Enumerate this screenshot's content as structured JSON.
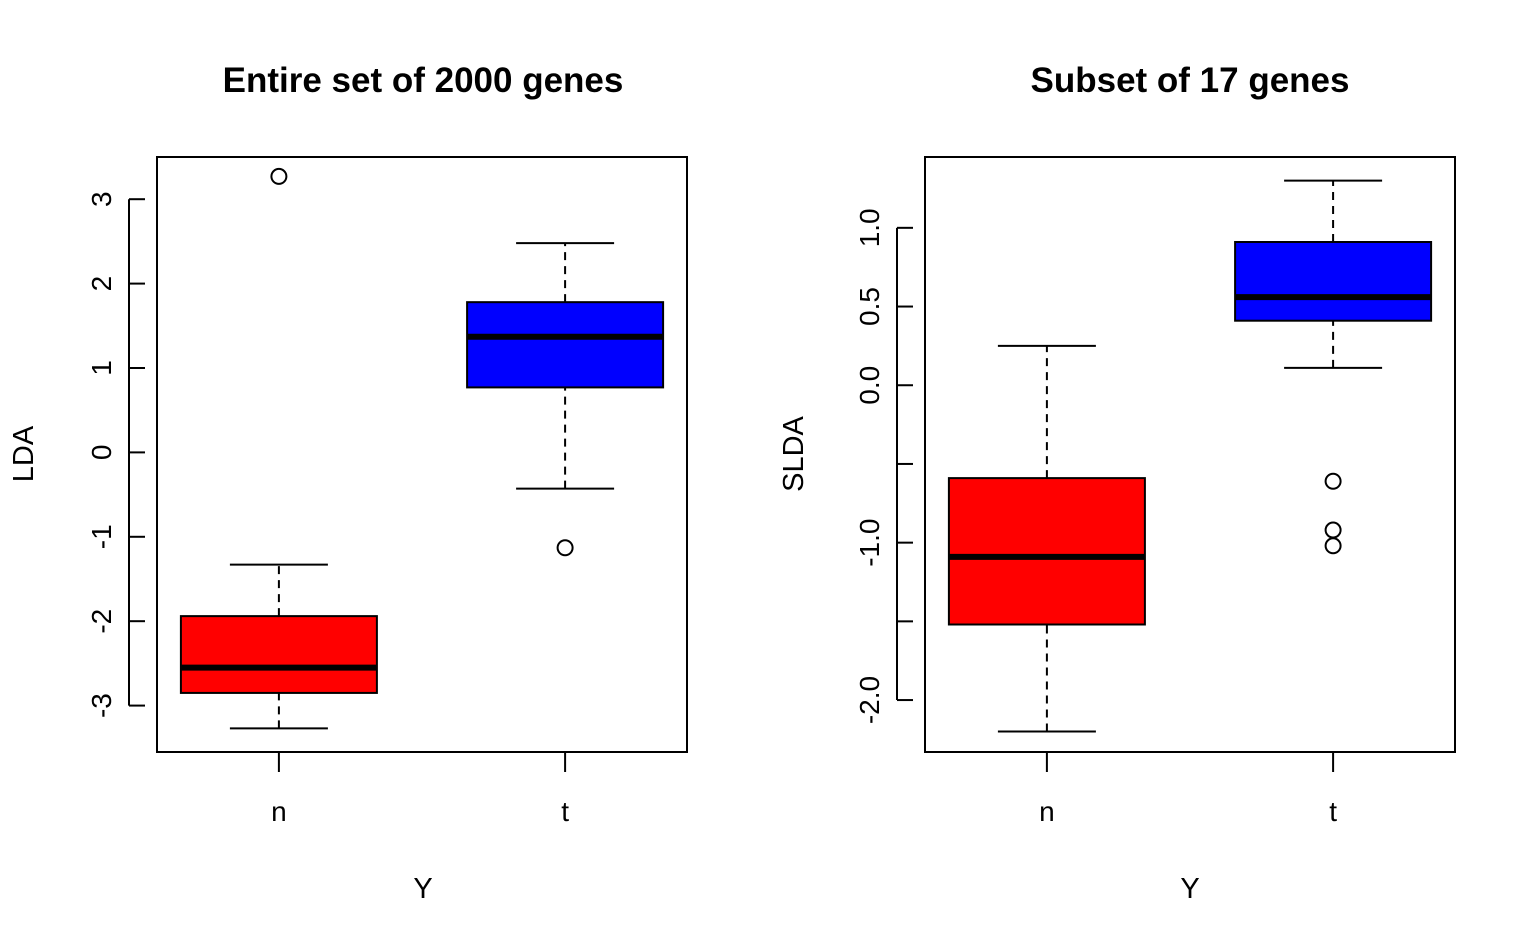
{
  "chart_data": [
    {
      "type": "boxplot",
      "title": "Entire set of 2000 genes",
      "xlabel": "Y",
      "ylabel": "LDA",
      "ylim": [
        -3.55,
        3.5
      ],
      "yticks": [
        {
          "value": -3,
          "label": "-3"
        },
        {
          "value": -2,
          "label": "-2"
        },
        {
          "value": -1,
          "label": "-1"
        },
        {
          "value": 0,
          "label": "0"
        },
        {
          "value": 1,
          "label": "1"
        },
        {
          "value": 2,
          "label": "2"
        },
        {
          "value": 3,
          "label": "3"
        }
      ],
      "categories": [
        "n",
        "t"
      ],
      "boxes": [
        {
          "category": "n",
          "color": "#ff0000",
          "whisker_low": -3.27,
          "q1": -2.85,
          "median": -2.55,
          "q3": -1.94,
          "whisker_high": -1.33,
          "outliers": [
            3.27
          ]
        },
        {
          "category": "t",
          "color": "#0000ff",
          "whisker_low": -0.43,
          "q1": 0.77,
          "median": 1.37,
          "q3": 1.78,
          "whisker_high": 2.48,
          "outliers": [
            -1.13
          ]
        }
      ]
    },
    {
      "type": "boxplot",
      "title": "Subset of 17 genes",
      "xlabel": "Y",
      "ylabel": "SLDA",
      "ylim": [
        -2.33,
        1.45
      ],
      "yticks": [
        {
          "value": -2.0,
          "label": "-2.0"
        },
        {
          "value": -1.5,
          "label": ""
        },
        {
          "value": -1.0,
          "label": "-1.0"
        },
        {
          "value": -0.5,
          "label": ""
        },
        {
          "value": 0.0,
          "label": "0.0"
        },
        {
          "value": 0.5,
          "label": "0.5"
        },
        {
          "value": 1.0,
          "label": "1.0"
        }
      ],
      "categories": [
        "n",
        "t"
      ],
      "boxes": [
        {
          "category": "n",
          "color": "#ff0000",
          "whisker_low": -2.2,
          "q1": -1.52,
          "median": -1.09,
          "q3": -0.59,
          "whisker_high": 0.25,
          "outliers": []
        },
        {
          "category": "t",
          "color": "#0000ff",
          "whisker_low": 0.11,
          "q1": 0.41,
          "median": 0.56,
          "q3": 0.91,
          "whisker_high": 1.3,
          "outliers": [
            -0.61,
            -0.92,
            -1.02
          ]
        }
      ]
    }
  ]
}
